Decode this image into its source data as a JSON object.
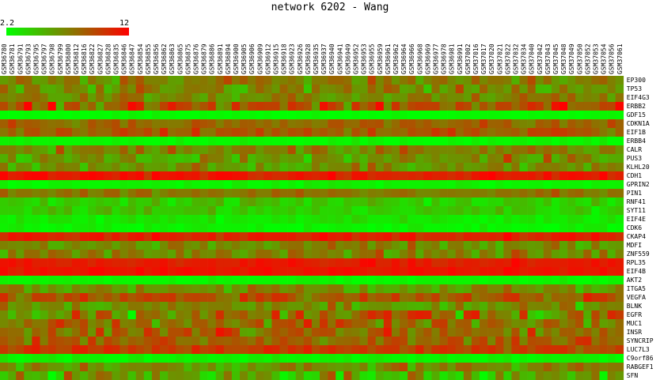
{
  "chart_data": {
    "type": "heatmap",
    "title": "network 6202 - Wang",
    "colorbar": {
      "min_label": "2.2",
      "max_label": "12",
      "min_color": "#00ff00",
      "max_color": "#ff0000"
    },
    "columns": [
      "GSM36780",
      "GSM36781",
      "GSM36791",
      "GSM36793",
      "GSM36795",
      "GSM36797",
      "GSM36798",
      "GSM36799",
      "GSM36800",
      "GSM36812",
      "GSM36816",
      "GSM36822",
      "GSM36827",
      "GSM36828",
      "GSM36835",
      "GSM36846",
      "GSM36847",
      "GSM36854",
      "GSM36855",
      "GSM36856",
      "GSM36862",
      "GSM36863",
      "GSM36865",
      "GSM36875",
      "GSM36876",
      "GSM36879",
      "GSM36886",
      "GSM36891",
      "GSM36894",
      "GSM36900",
      "GSM36905",
      "GSM36906",
      "GSM36909",
      "GSM36912",
      "GSM36915",
      "GSM36918",
      "GSM36923",
      "GSM36926",
      "GSM36928",
      "GSM36935",
      "GSM36937",
      "GSM36940",
      "GSM36941",
      "GSM36949",
      "GSM36952",
      "GSM36953",
      "GSM36955",
      "GSM36959",
      "GSM36961",
      "GSM36962",
      "GSM36964",
      "GSM36966",
      "GSM36968",
      "GSM36969",
      "GSM36977",
      "GSM36978",
      "GSM36981",
      "GSM36991",
      "GSM37002",
      "GSM37016",
      "GSM37017",
      "GSM37020",
      "GSM37021",
      "GSM37022",
      "GSM37032",
      "GSM37034",
      "GSM37040",
      "GSM37042",
      "GSM37043",
      "GSM37045",
      "GSM37048",
      "GSM37049",
      "GSM37050",
      "GSM37052",
      "GSM37053",
      "GSM37054",
      "GSM37056",
      "GSM37061"
    ],
    "rows": [
      "EP300",
      "TP53",
      "EIF4G3",
      "ERBB2",
      "GDF15",
      "CDKN1A",
      "EIF1B",
      "ERBB4",
      "CALR",
      "PUS3",
      "KLHL20",
      "CDH1",
      "GPRIN2",
      "PIN1",
      "RNF41",
      "SYT11",
      "EIF4E",
      "CDK6",
      "CKAP4",
      "MDFI",
      "ZNF559",
      "RPL35",
      "EIF4B",
      "AKT2",
      "ITGA5",
      "VEGFA",
      "BLNK",
      "EGFR",
      "MUC1",
      "INSR",
      "SYNCRIP",
      "LUC7L3",
      "C9orf86",
      "RABGEF1",
      "SFN"
    ],
    "row_means": [
      0.5,
      0.45,
      0.48,
      0.7,
      0.02,
      0.6,
      0.65,
      0.03,
      0.5,
      0.45,
      0.42,
      0.9,
      0.05,
      0.55,
      0.2,
      0.2,
      0.1,
      0.05,
      0.88,
      0.45,
      0.48,
      0.9,
      0.92,
      0.03,
      0.45,
      0.68,
      0.45,
      0.5,
      0.6,
      0.6,
      0.62,
      0.75,
      0.05,
      0.45,
      0.35
    ],
    "row_spread": [
      0.18,
      0.2,
      0.18,
      0.3,
      0.04,
      0.15,
      0.18,
      0.06,
      0.2,
      0.25,
      0.18,
      0.12,
      0.06,
      0.12,
      0.15,
      0.12,
      0.08,
      0.06,
      0.1,
      0.18,
      0.2,
      0.08,
      0.06,
      0.05,
      0.2,
      0.2,
      0.2,
      0.35,
      0.3,
      0.25,
      0.2,
      0.15,
      0.08,
      0.2,
      0.3
    ]
  }
}
